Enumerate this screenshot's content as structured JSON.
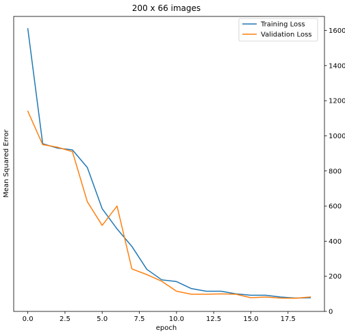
{
  "chart_data": {
    "type": "line",
    "title": "200 x 66 images",
    "xlabel": "epoch",
    "ylabel": "Mean Squared Error",
    "xlim": [
      -0.95,
      19.95
    ],
    "ylim": [
      0,
      1680
    ],
    "xticks": [
      0.0,
      2.5,
      5.0,
      7.5,
      10.0,
      12.5,
      15.0,
      17.5
    ],
    "xtick_labels": [
      "0.0",
      "2.5",
      "5.0",
      "7.5",
      "10.0",
      "12.5",
      "15.0",
      "17.5"
    ],
    "yticks": [
      0,
      200,
      400,
      600,
      800,
      1000,
      1200,
      1400,
      1600
    ],
    "ytick_labels": [
      "0",
      "200",
      "400",
      "600",
      "800",
      "1000",
      "1200",
      "1400",
      "1600"
    ],
    "y_axis_side": "right",
    "grid": false,
    "legend_position": "top-right",
    "x": [
      0,
      1,
      2,
      3,
      4,
      5,
      6,
      7,
      8,
      9,
      10,
      11,
      12,
      13,
      14,
      15,
      16,
      17,
      18,
      19
    ],
    "series": [
      {
        "name": "Training Loss",
        "color": "#1f77b4",
        "values": [
          1610,
          955,
          930,
          920,
          820,
          585,
          470,
          370,
          240,
          180,
          170,
          130,
          115,
          115,
          100,
          92,
          92,
          82,
          76,
          78
        ]
      },
      {
        "name": "Validation Loss",
        "color": "#ff7f0e",
        "values": [
          1140,
          950,
          935,
          910,
          625,
          490,
          600,
          242,
          210,
          172,
          115,
          98,
          98,
          100,
          98,
          78,
          82,
          76,
          75,
          82
        ]
      }
    ]
  }
}
